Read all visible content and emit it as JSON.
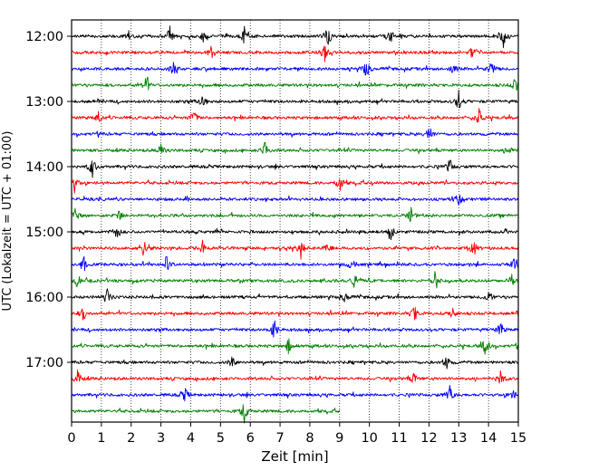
{
  "chart_data": {
    "type": "line",
    "title": "",
    "xlabel": "Zeit  [min]",
    "ylabel": "UTC (Lokalzeit = UTC + 01:00)",
    "x_range": [
      0,
      15
    ],
    "x_ticks": [
      0,
      1,
      2,
      3,
      4,
      5,
      6,
      7,
      8,
      9,
      10,
      11,
      12,
      13,
      14,
      15
    ],
    "y_tick_labels": [
      "12:00",
      "13:00",
      "14:00",
      "15:00",
      "16:00",
      "17:00"
    ],
    "grid": "vertical dotted lines at each minute",
    "trace_interval_minutes": 15,
    "trace_colors": [
      "#000000",
      "#ff0000",
      "#0000ff",
      "#008000"
    ],
    "traces": [
      {
        "start": "12:00",
        "length_min": 15,
        "events_min": [
          4.4,
          5.8,
          8.6,
          10.7,
          14.5,
          1.9,
          3.3
        ]
      },
      {
        "start": "12:15",
        "length_min": 15,
        "events_min": [
          13.5,
          4.7,
          8.5
        ]
      },
      {
        "start": "12:30",
        "length_min": 15,
        "events_min": [
          3.4,
          9.9,
          12.8,
          14.1
        ]
      },
      {
        "start": "12:45",
        "length_min": 15,
        "events_min": [
          2.5,
          14.9
        ]
      },
      {
        "start": "13:00",
        "length_min": 15,
        "events_min": [
          4.4,
          13.0
        ]
      },
      {
        "start": "13:15",
        "length_min": 15,
        "events_min": [
          0.9,
          4.1,
          13.7
        ]
      },
      {
        "start": "13:30",
        "length_min": 15,
        "events_min": [
          12.0
        ]
      },
      {
        "start": "13:45",
        "length_min": 15,
        "events_min": [
          3.0,
          6.5,
          14.7
        ]
      },
      {
        "start": "14:00",
        "length_min": 15,
        "events_min": [
          0.7,
          12.7
        ]
      },
      {
        "start": "14:15",
        "length_min": 15,
        "events_min": [
          0.1,
          9.0
        ]
      },
      {
        "start": "14:30",
        "length_min": 15,
        "events_min": [
          13.0
        ]
      },
      {
        "start": "14:45",
        "length_min": 15,
        "events_min": [
          0.1,
          1.6,
          11.4
        ]
      },
      {
        "start": "15:00",
        "length_min": 15,
        "events_min": [
          1.5,
          10.7
        ]
      },
      {
        "start": "15:15",
        "length_min": 15,
        "events_min": [
          2.4,
          4.4,
          7.7,
          8.6,
          13.5
        ]
      },
      {
        "start": "15:30",
        "length_min": 15,
        "events_min": [
          0.4,
          3.2,
          9.4,
          14.9
        ]
      },
      {
        "start": "15:45",
        "length_min": 15,
        "events_min": [
          0.2,
          9.5,
          12.2,
          14.8
        ]
      },
      {
        "start": "16:00",
        "length_min": 15,
        "events_min": [
          1.2,
          9.2,
          14.0
        ]
      },
      {
        "start": "16:15",
        "length_min": 15,
        "events_min": [
          0.4,
          11.5,
          12.8
        ]
      },
      {
        "start": "16:30",
        "length_min": 15,
        "events_min": [
          6.8,
          14.4
        ]
      },
      {
        "start": "16:45",
        "length_min": 15,
        "events_min": [
          7.3,
          13.9
        ]
      },
      {
        "start": "17:00",
        "length_min": 15,
        "events_min": [
          5.4,
          12.6
        ]
      },
      {
        "start": "17:15",
        "length_min": 15,
        "events_min": [
          0.2,
          11.5,
          14.4
        ]
      },
      {
        "start": "17:30",
        "length_min": 15,
        "events_min": [
          3.8,
          12.7,
          14.8
        ]
      },
      {
        "start": "17:45",
        "length_min": 9.0,
        "events_min": [
          5.8
        ]
      }
    ]
  }
}
